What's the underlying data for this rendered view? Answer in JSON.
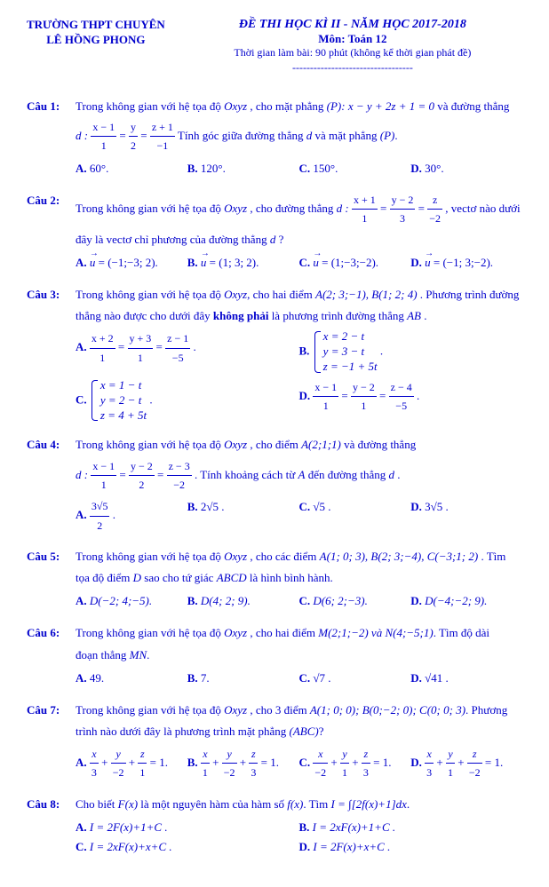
{
  "header": {
    "school_l1": "TRƯỜNG THPT CHUYÊN",
    "school_l2": "LÊ HỒNG PHONG",
    "exam_title": "ĐỀ THI HỌC KÌ II - NĂM HỌC 2017-2018",
    "subject": "Môn: Toán 12",
    "duration": "Thời gian làm bài: 90 phút (không kể thời gian phát đề)",
    "divider": "----------------------------------"
  },
  "q1": {
    "label": "Câu 1:",
    "p1": "Trong không gian với hệ tọa độ ",
    "oxyz": "Oxyz",
    "p2": " , cho mặt phẳng ",
    "plane": "(P): x − y + 2z + 1 = 0",
    "p3": " và đường thẳng",
    "d": "d :",
    "f1n": "x − 1",
    "f1d": "1",
    "f2n": "y",
    "f2d": "2",
    "f3n": "z + 1",
    "f3d": "−1",
    "p4": " Tính góc giữa đường thẳng ",
    "dvar": "d",
    "p5": " và mặt phẳng ",
    "Pvar": "(P)",
    "dot": ".",
    "a": "A.",
    "av": "60°.",
    "b": "B.",
    "bv": "120°.",
    "c": "C.",
    "cv": "150°.",
    "d2": "D.",
    "dv": "30°."
  },
  "q2": {
    "label": "Câu 2:",
    "p1": "Trong không gian với hệ tọa độ ",
    "oxyz": "Oxyz",
    "p2": " , cho đường thẳng ",
    "d": "d :",
    "f1n": "x + 1",
    "f1d": "1",
    "f2n": "y − 2",
    "f2d": "3",
    "f3n": "z",
    "f3d": "−2",
    "p3": " , vectơ nào dưới",
    "p4": "đây là vectơ chỉ phương của đường thẳng ",
    "dvar": "d",
    "qm": " ?",
    "a": "A.",
    "av": " = (−1;−3; 2).",
    "b": "B.",
    "bv": " = (1; 3; 2).",
    "c": "C.",
    "cv": " = (1;−3;−2).",
    "d2": "D.",
    "dv": " = (−1; 3;−2).",
    "u": "u"
  },
  "q3": {
    "label": "Câu 3:",
    "p1": "Trong không gian với hệ tọa độ ",
    "oxyz": "Oxyz",
    "p2": ",  cho hai điểm ",
    "pts": "A(2; 3;−1), B(1; 2; 4)",
    "p3": " . Phương trình đường",
    "p4": "thẳng nào được cho dưới đây ",
    "kp": "không phải",
    "p5": " là phương trình đường thẳng ",
    "ab": "AB",
    "dot": " .",
    "a": "A.",
    "af1n": "x + 2",
    "af1d": "1",
    "af2n": "y + 3",
    "af2d": "1",
    "af3n": "z − 1",
    "af3d": "−5",
    "b": "B.",
    "b1": "x = 2 − t",
    "b2": "y = 3 − t",
    "b3": "z = −1 + 5t",
    "c": "C.",
    "c1": "x = 1 − t",
    "c2": "y = 2 − t",
    "c3": "z = 4 + 5t",
    "d2": "D.",
    "df1n": "x − 1",
    "df1d": "1",
    "df2n": "y − 2",
    "df2d": "1",
    "df3n": "z − 4",
    "df3d": "−5"
  },
  "q4": {
    "label": "Câu 4:",
    "p1": "Trong không gian với hệ tọa độ ",
    "oxyz": "Oxyz",
    "p2": " , cho điểm ",
    "pt": "A(2;1;1)",
    "p3": " và đường thẳng",
    "d": "d :",
    "f1n": "x − 1",
    "f1d": "1",
    "f2n": "y − 2",
    "f2d": "2",
    "f3n": "z − 3",
    "f3d": "−2",
    "p4": " . Tính khoảng cách từ ",
    "A": "A",
    "p5": " đến đường thẳng ",
    "dvar": "d",
    "dot": " .",
    "a": "A.",
    "an": "3√5",
    "ad": "2",
    "b": "B.",
    "bv": "2√5 .",
    "c": "C.",
    "cv": "√5 .",
    "d2": "D.",
    "dv": "3√5 ."
  },
  "q5": {
    "label": "Câu 5:",
    "p1": "Trong không gian với hệ tọa độ ",
    "oxyz": "Oxyz",
    "p2": " , cho các điểm ",
    "pts": "A(1; 0; 3), B(2; 3;−4), C(−3;1; 2)",
    "p3": " . Tìm",
    "p4": "tọa độ điểm ",
    "D": "D",
    "p5": " sao cho tứ giác ",
    "abcd": "ABCD",
    "p6": " là hình bình hành.",
    "a": "A.",
    "av": "D(−2; 4;−5).",
    "b": "B.",
    "bv": "D(4; 2; 9).",
    "c": "C.",
    "cv": "D(6; 2;−3).",
    "d2": "D.",
    "dv": "D(−4;−2; 9)."
  },
  "q6": {
    "label": "Câu 6:",
    "p1": "Trong không gian với hệ tọa độ ",
    "oxyz": "Oxyz",
    "p2": " , cho hai điểm ",
    "pts": "M(2;1;−2) và N(4;−5;1)",
    "p3": ". Tìm độ dài",
    "p4": "đoạn thẳng ",
    "mn": "MN",
    "dot": ".",
    "a": "A.",
    "av": "49.",
    "b": "B.",
    "bv": "7.",
    "c": "C.",
    "cv": "√7 .",
    "d2": "D.",
    "dv": "√41 ."
  },
  "q7": {
    "label": "Câu 7:",
    "p1": "Trong không gian với hệ tọa độ ",
    "oxyz": "Oxyz",
    "p2": " , cho 3 điểm ",
    "pts": "A(1; 0; 0);  B(0;−2; 0); C(0; 0; 3)",
    "p3": ". Phương",
    "p4": "trình nào dưới đây là phương trình mặt phẳng ",
    "abc": "(ABC)",
    "qm": "?",
    "a": "A.",
    "af1n": "x",
    "af1d": "3",
    "af2n": "y",
    "af2d": "−2",
    "af3n": "z",
    "af3d": "1",
    "b": "B.",
    "bf1n": "x",
    "bf1d": "1",
    "bf2n": "y",
    "bf2d": "−2",
    "bf3n": "z",
    "bf3d": "3",
    "c": "C.",
    "cf1n": "x",
    "cf1d": "−2",
    "cf2n": "y",
    "cf2d": "1",
    "cf3n": "z",
    "cf3d": "3",
    "d2": "D.",
    "df1n": "x",
    "df1d": "3",
    "df2n": "y",
    "df2d": "1",
    "df3n": "z",
    "df3d": "−2",
    "eq1": " = 1."
  },
  "q8": {
    "label": "Câu 8:",
    "p1": "Cho biết ",
    "Fx": "F(x)",
    "p2": " là một nguyên hàm của hàm số ",
    "fx": "f(x)",
    "p3": ". Tìm ",
    "I": "I = ∫[2f(x)+1]dx",
    "dot": ".",
    "a": "A.",
    "av": "I = 2F(x)+1+C .",
    "b": "B.",
    "bv": "I = 2xF(x)+1+C .",
    "c": "C.",
    "cv": "I = 2xF(x)+x+C .",
    "d2": "D.",
    "dv": "I = 2F(x)+x+C ."
  }
}
